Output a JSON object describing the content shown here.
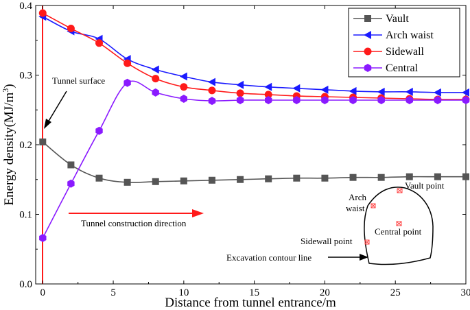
{
  "chart_data": {
    "type": "line",
    "xlabel": "Distance from tunnel entrance/m",
    "ylabel_main": "Energy density(MJ/m",
    "ylabel_sup": "3",
    "ylabel_close": ")",
    "xlim": [
      -0.5,
      30
    ],
    "ylim": [
      0.0,
      0.4
    ],
    "xticks": [
      0,
      5,
      10,
      15,
      20,
      25,
      30
    ],
    "yticks": [
      0.0,
      0.1,
      0.2,
      0.3,
      0.4
    ],
    "ytick_labels": [
      "0.0",
      "0.1",
      "0.2",
      "0.3",
      "0.4"
    ],
    "grid": false,
    "legend_position": "top-right",
    "x": [
      0,
      2,
      4,
      6,
      8,
      10,
      12,
      14,
      16,
      18,
      20,
      22,
      24,
      26,
      28,
      30
    ],
    "series": [
      {
        "name": "Vault",
        "color": "#555555",
        "marker": "square",
        "values": [
          0.204,
          0.171,
          0.152,
          0.146,
          0.147,
          0.148,
          0.149,
          0.15,
          0.151,
          0.152,
          0.152,
          0.153,
          0.153,
          0.154,
          0.154,
          0.154
        ]
      },
      {
        "name": "Arch waist",
        "color": "#1a1aff",
        "marker": "triangle-left",
        "values": [
          0.384,
          0.363,
          0.352,
          0.323,
          0.308,
          0.298,
          0.29,
          0.286,
          0.283,
          0.281,
          0.279,
          0.277,
          0.276,
          0.276,
          0.275,
          0.275
        ]
      },
      {
        "name": "Sidewall",
        "color": "#ff1a1a",
        "marker": "circle",
        "values": [
          0.389,
          0.367,
          0.346,
          0.317,
          0.295,
          0.283,
          0.278,
          0.274,
          0.272,
          0.27,
          0.269,
          0.268,
          0.267,
          0.266,
          0.265,
          0.265
        ]
      },
      {
        "name": "Central",
        "color": "#8a1aff",
        "marker": "hexagon",
        "values": [
          0.066,
          0.144,
          0.22,
          0.289,
          0.275,
          0.266,
          0.263,
          0.264,
          0.264,
          0.264,
          0.264,
          0.264,
          0.264,
          0.264,
          0.264,
          0.264
        ]
      }
    ],
    "annotations": {
      "tunnel_surface": "Tunnel surface",
      "construction_direction": "Tunnel construction direction",
      "vault_point": "Vault point",
      "arch_line1": "Arch",
      "arch_line2": "waist",
      "central_point": "Central point",
      "sidewall_point": "Sidewall point",
      "excavation_contour": "Excavation contour line"
    }
  }
}
